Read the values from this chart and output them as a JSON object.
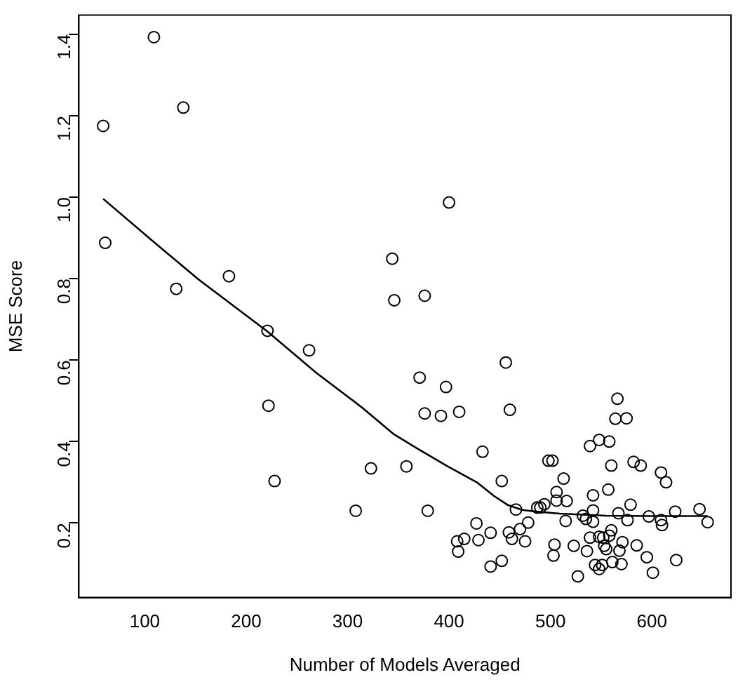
{
  "chart_data": {
    "type": "scatter",
    "xlabel": "Number of Models Averaged",
    "ylabel": "MSE Score",
    "xlim": [
      35,
      678
    ],
    "ylim": [
      0.017,
      1.447
    ],
    "xticks": [
      100,
      200,
      300,
      400,
      500,
      600
    ],
    "yticks": [
      0.2,
      0.4,
      0.6,
      0.8,
      {
        "value": 1,
        "label": "1.0"
      },
      1.2,
      1.4
    ],
    "legend": false,
    "grid": false,
    "series": [
      {
        "color": "#000000",
        "marker": "circle",
        "x": [
          59,
          61,
          109,
          138,
          131,
          183,
          221,
          222,
          228,
          262,
          308,
          323,
          344,
          346,
          358,
          371,
          376,
          376,
          379,
          392,
          397,
          400,
          410,
          408,
          409,
          415,
          427,
          429,
          433,
          441,
          441,
          452,
          452,
          456,
          460,
          459,
          462,
          466,
          470,
          475,
          478,
          487,
          490,
          494,
          498,
          502,
          503,
          504,
          506,
          506,
          513,
          515,
          516,
          523,
          527,
          532,
          535,
          536,
          539,
          539,
          542,
          542,
          542,
          544,
          548,
          548,
          548,
          551,
          552,
          553,
          555,
          557,
          558,
          558,
          560,
          560,
          561,
          564,
          566,
          567,
          568,
          570,
          571,
          575,
          576,
          579,
          582,
          585,
          589,
          595,
          597,
          601,
          609,
          609,
          610,
          614,
          623,
          624,
          647,
          655
        ],
        "values": [
          1.175,
          0.888,
          1.393,
          1.22,
          0.775,
          0.806,
          0.672,
          0.488,
          0.303,
          0.624,
          0.23,
          0.334,
          0.849,
          0.747,
          0.339,
          0.557,
          0.758,
          0.469,
          0.23,
          0.463,
          0.534,
          0.987,
          0.473,
          0.155,
          0.13,
          0.161,
          0.199,
          0.158,
          0.375,
          0.176,
          0.093,
          0.303,
          0.107,
          0.594,
          0.478,
          0.177,
          0.161,
          0.233,
          0.185,
          0.155,
          0.201,
          0.238,
          0.238,
          0.246,
          0.353,
          0.353,
          0.12,
          0.147,
          0.276,
          0.255,
          0.309,
          0.205,
          0.254,
          0.144,
          0.069,
          0.218,
          0.21,
          0.131,
          0.389,
          0.164,
          0.268,
          0.231,
          0.203,
          0.097,
          0.087,
          0.404,
          0.166,
          0.097,
          0.164,
          0.144,
          0.136,
          0.282,
          0.4,
          0.169,
          0.182,
          0.341,
          0.104,
          0.456,
          0.505,
          0.224,
          0.132,
          0.099,
          0.153,
          0.457,
          0.207,
          0.245,
          0.35,
          0.145,
          0.341,
          0.116,
          0.216,
          0.078,
          0.324,
          0.207,
          0.195,
          0.3,
          0.228,
          0.109,
          0.234,
          0.202
        ]
      },
      {
        "type": "line",
        "color": "#000000",
        "marker": "none",
        "line_style": "solid",
        "x": [
          59,
          109,
          153,
          221,
          269,
          315,
          345,
          370,
          398,
          428,
          444,
          458,
          472,
          486,
          509,
          555,
          601,
          655
        ],
        "values": [
          0.996,
          0.89,
          0.798,
          0.67,
          0.569,
          0.482,
          0.419,
          0.381,
          0.34,
          0.299,
          0.267,
          0.244,
          0.232,
          0.228,
          0.223,
          0.218,
          0.217,
          0.217
        ]
      }
    ]
  }
}
